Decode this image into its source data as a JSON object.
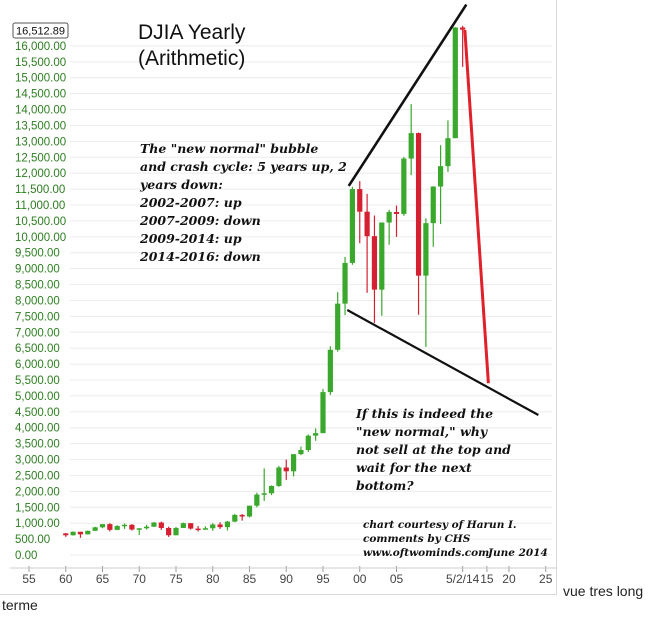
{
  "chart_data": {
    "type": "candlestick",
    "title": "DJIA Yearly",
    "subtitle": "(Arithmetic)",
    "current_value_label": "16,512.89",
    "y_ticks": [
      "16,000.00",
      "15,500.00",
      "15,000.00",
      "14,500.00",
      "14,000.00",
      "13,500.00",
      "13,000.00",
      "12,500.00",
      "12,000.00",
      "11,500.00",
      "11,000.00",
      "10,500.00",
      "10,000.00",
      "9,500.00",
      "9,000.00",
      "8,500.00",
      "8,000.00",
      "7,500.00",
      "7,000.00",
      "6,500.00",
      "6,000.00",
      "5,500.00",
      "5,000.00",
      "4,500.00",
      "4,000.00",
      "3,500.00",
      "3,000.00",
      "2,500.00",
      "2,000.00",
      "1,500.00",
      "1,000.00",
      "500.00",
      "0.00"
    ],
    "x_ticks": [
      "55",
      "60",
      "65",
      "70",
      "75",
      "80",
      "85",
      "90",
      "95",
      "00",
      "05",
      "5/2/14",
      "15",
      "20",
      "25"
    ],
    "ylim": [
      0,
      16500
    ],
    "grid": true,
    "up_color": "#3aa82c",
    "down_color": "#d42030",
    "projection_color": "#e0202a",
    "trendline_color": "#111111",
    "candles": [
      {
        "x": 1960,
        "o": 680,
        "c": 620,
        "h": 690,
        "l": 570
      },
      {
        "x": 1961,
        "o": 620,
        "c": 730,
        "h": 740,
        "l": 610
      },
      {
        "x": 1962,
        "o": 730,
        "c": 650,
        "h": 730,
        "l": 540
      },
      {
        "x": 1963,
        "o": 650,
        "c": 760,
        "h": 770,
        "l": 640
      },
      {
        "x": 1964,
        "o": 760,
        "c": 870,
        "h": 890,
        "l": 760
      },
      {
        "x": 1965,
        "o": 870,
        "c": 970,
        "h": 970,
        "l": 840
      },
      {
        "x": 1966,
        "o": 970,
        "c": 790,
        "h": 1000,
        "l": 740
      },
      {
        "x": 1967,
        "o": 790,
        "c": 910,
        "h": 940,
        "l": 780
      },
      {
        "x": 1968,
        "o": 910,
        "c": 950,
        "h": 990,
        "l": 820
      },
      {
        "x": 1969,
        "o": 950,
        "c": 800,
        "h": 970,
        "l": 770
      },
      {
        "x": 1970,
        "o": 800,
        "c": 840,
        "h": 840,
        "l": 630
      },
      {
        "x": 1971,
        "o": 840,
        "c": 890,
        "h": 950,
        "l": 800
      },
      {
        "x": 1972,
        "o": 890,
        "c": 1020,
        "h": 1040,
        "l": 880
      },
      {
        "x": 1973,
        "o": 1020,
        "c": 850,
        "h": 1050,
        "l": 790
      },
      {
        "x": 1974,
        "o": 850,
        "c": 620,
        "h": 890,
        "l": 570
      },
      {
        "x": 1975,
        "o": 620,
        "c": 850,
        "h": 880,
        "l": 620
      },
      {
        "x": 1976,
        "o": 850,
        "c": 1000,
        "h": 1020,
        "l": 850
      },
      {
        "x": 1977,
        "o": 1000,
        "c": 830,
        "h": 1000,
        "l": 800
      },
      {
        "x": 1978,
        "o": 830,
        "c": 805,
        "h": 910,
        "l": 740
      },
      {
        "x": 1979,
        "o": 805,
        "c": 840,
        "h": 900,
        "l": 800
      },
      {
        "x": 1980,
        "o": 840,
        "c": 960,
        "h": 1000,
        "l": 760
      },
      {
        "x": 1981,
        "o": 960,
        "c": 875,
        "h": 1030,
        "l": 820
      },
      {
        "x": 1982,
        "o": 875,
        "c": 1050,
        "h": 1070,
        "l": 770
      },
      {
        "x": 1983,
        "o": 1050,
        "c": 1260,
        "h": 1290,
        "l": 1030
      },
      {
        "x": 1984,
        "o": 1260,
        "c": 1210,
        "h": 1290,
        "l": 1080
      },
      {
        "x": 1985,
        "o": 1210,
        "c": 1550,
        "h": 1550,
        "l": 1180
      },
      {
        "x": 1986,
        "o": 1550,
        "c": 1900,
        "h": 1960,
        "l": 1500
      },
      {
        "x": 1987,
        "o": 1900,
        "c": 1940,
        "h": 2720,
        "l": 1700
      },
      {
        "x": 1988,
        "o": 1940,
        "c": 2170,
        "h": 2190,
        "l": 1880
      },
      {
        "x": 1989,
        "o": 2170,
        "c": 2750,
        "h": 2800,
        "l": 2140
      },
      {
        "x": 1990,
        "o": 2750,
        "c": 2630,
        "h": 3000,
        "l": 2360
      },
      {
        "x": 1991,
        "o": 2630,
        "c": 3170,
        "h": 3170,
        "l": 2470
      },
      {
        "x": 1992,
        "o": 3170,
        "c": 3300,
        "h": 3410,
        "l": 3140
      },
      {
        "x": 1993,
        "o": 3300,
        "c": 3750,
        "h": 3790,
        "l": 3240
      },
      {
        "x": 1994,
        "o": 3750,
        "c": 3830,
        "h": 3980,
        "l": 3590
      },
      {
        "x": 1995,
        "o": 3830,
        "c": 5120,
        "h": 5220,
        "l": 3830
      },
      {
        "x": 1996,
        "o": 5120,
        "c": 6450,
        "h": 6560,
        "l": 5030
      },
      {
        "x": 1997,
        "o": 6450,
        "c": 7900,
        "h": 8260,
        "l": 6390
      },
      {
        "x": 1998,
        "o": 7900,
        "c": 9180,
        "h": 9370,
        "l": 7540
      },
      {
        "x": 1999,
        "o": 9180,
        "c": 11500,
        "h": 11570,
        "l": 9120
      },
      {
        "x": 2000,
        "o": 11500,
        "c": 10790,
        "h": 11750,
        "l": 9800
      },
      {
        "x": 2001,
        "o": 10790,
        "c": 10020,
        "h": 11350,
        "l": 8240
      },
      {
        "x": 2002,
        "o": 10020,
        "c": 8340,
        "h": 10670,
        "l": 7290
      },
      {
        "x": 2003,
        "o": 8340,
        "c": 10450,
        "h": 10450,
        "l": 7520
      },
      {
        "x": 2004,
        "o": 10450,
        "c": 10780,
        "h": 10850,
        "l": 9750
      },
      {
        "x": 2005,
        "o": 10780,
        "c": 10720,
        "h": 10980,
        "l": 10000
      },
      {
        "x": 2006,
        "o": 10720,
        "c": 12460,
        "h": 12510,
        "l": 10660
      },
      {
        "x": 2007,
        "o": 12460,
        "c": 13260,
        "h": 14170,
        "l": 11940
      },
      {
        "x": 2008,
        "o": 13260,
        "c": 8780,
        "h": 13280,
        "l": 7550
      },
      {
        "x": 2009,
        "o": 8780,
        "c": 10430,
        "h": 10580,
        "l": 6540
      },
      {
        "x": 2010,
        "o": 10430,
        "c": 11580,
        "h": 11590,
        "l": 9690
      },
      {
        "x": 2011,
        "o": 11580,
        "c": 12220,
        "h": 12880,
        "l": 10400
      },
      {
        "x": 2012,
        "o": 12220,
        "c": 13100,
        "h": 13660,
        "l": 12040
      },
      {
        "x": 2013,
        "o": 13100,
        "c": 16580,
        "h": 16590,
        "l": 13100
      },
      {
        "x": 2014,
        "o": 16580,
        "c": 16510,
        "h": 16630,
        "l": 15340
      }
    ],
    "projection": [
      {
        "x": 2014.3,
        "y": 16500
      },
      {
        "x": 2017.5,
        "y": 5400
      }
    ],
    "trendline_upper": [
      {
        "x": 1998.5,
        "y": 11600
      },
      {
        "x": 2014.5,
        "y": 17300
      }
    ],
    "trendline_lower": [
      {
        "x": 1998.3,
        "y": 7700
      },
      {
        "x": 2024.3,
        "y": 4400
      }
    ],
    "annotations": {
      "cycle_text": [
        "The \"new normal\" bubble",
        "and crash cycle: 5 years up, 2",
        "years down:",
        "2002-2007: up",
        "2007-2009: down",
        "2009-2014: up",
        "2014-2016: down"
      ],
      "question_text": [
        "If this is indeed the",
        "\"new normal,\" why",
        "not sell at the top and",
        "wait for the next",
        "bottom?"
      ],
      "credit_text": [
        "chart courtesy of Harun I.",
        "comments by CHS",
        "www.oftwominds.com"
      ],
      "credit_date": "June 2014"
    }
  },
  "page": {
    "caption_right": "vue tres long",
    "caption_left": "terme"
  }
}
